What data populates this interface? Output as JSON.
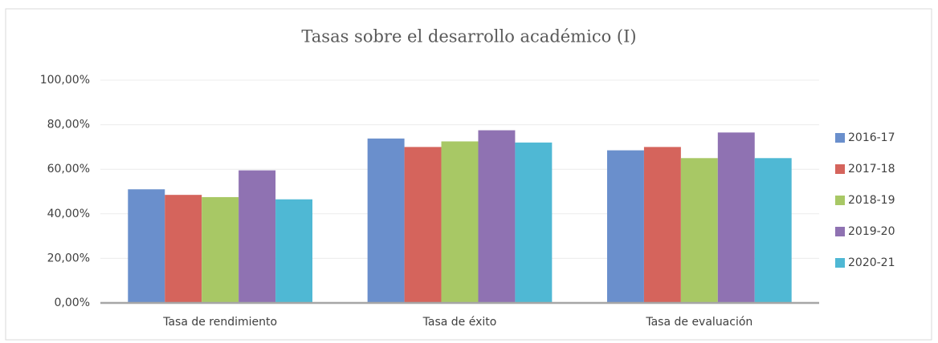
{
  "chart_data": {
    "type": "bar",
    "title": "Tasas sobre el desarrollo académico (I)",
    "categories": [
      "Tasa de rendimiento",
      "Tasa de éxito",
      "Tasa de evaluación"
    ],
    "series": [
      {
        "name": "2016-17",
        "color": "#6a8fcc",
        "values": [
          51,
          73.8,
          68.5
        ]
      },
      {
        "name": "2017-18",
        "color": "#d5645c",
        "values": [
          48.5,
          70,
          70
        ]
      },
      {
        "name": "2018-19",
        "color": "#a8c865",
        "values": [
          47.5,
          72.5,
          65
        ]
      },
      {
        "name": "2019-20",
        "color": "#8f72b2",
        "values": [
          59.5,
          77.5,
          76.5
        ]
      },
      {
        "name": "2020-21",
        "color": "#4fb8d4",
        "values": [
          46.5,
          72,
          65
        ]
      }
    ],
    "ylim": [
      0,
      100
    ],
    "yticks": [
      {
        "value": 0,
        "label": "0,00%"
      },
      {
        "value": 20,
        "label": "20,00%"
      },
      {
        "value": 40,
        "label": "40,00%"
      },
      {
        "value": 60,
        "label": "60,00%"
      },
      {
        "value": 80,
        "label": "80,00%"
      },
      {
        "value": 100,
        "label": "100,00%"
      }
    ],
    "grid": true,
    "legend": "right"
  }
}
